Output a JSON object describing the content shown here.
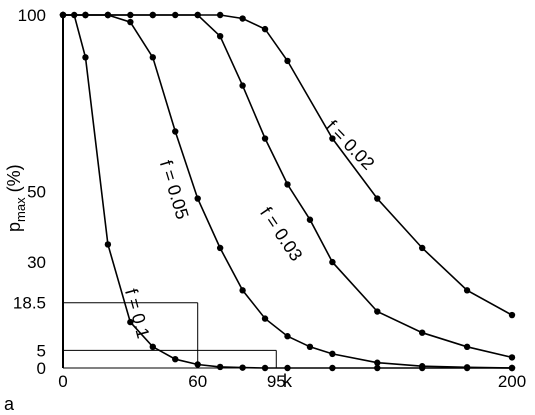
{
  "chart_data": {
    "type": "line",
    "panel_label": "a",
    "xlabel": "k",
    "ylabel_main": "p",
    "ylabel_sub": "max",
    "ylabel_unit": " (%)",
    "xlim": [
      0,
      200
    ],
    "ylim": [
      0,
      100
    ],
    "x_ticks": [
      {
        "value": 0,
        "label": "0"
      },
      {
        "value": 60,
        "label": "60"
      },
      {
        "value": 95,
        "label": "95"
      },
      {
        "value": 200,
        "label": "200"
      }
    ],
    "y_ticks": [
      {
        "value": 0,
        "label": "0"
      },
      {
        "value": 5,
        "label": "5"
      },
      {
        "value": 18.5,
        "label": "18.5"
      },
      {
        "value": 30,
        "label": "30"
      },
      {
        "value": 50,
        "label": "50"
      },
      {
        "value": 100,
        "label": "100"
      }
    ],
    "series": [
      {
        "name": "f = 0.1",
        "points": [
          [
            0,
            100
          ],
          [
            5,
            100
          ],
          [
            10,
            88
          ],
          [
            20,
            35
          ],
          [
            30,
            13
          ],
          [
            40,
            6
          ],
          [
            50,
            2.5
          ],
          [
            60,
            1
          ],
          [
            70,
            0.3
          ],
          [
            80,
            0.1
          ],
          [
            90,
            0
          ],
          [
            100,
            0
          ],
          [
            120,
            0
          ],
          [
            140,
            0
          ],
          [
            160,
            0
          ],
          [
            180,
            0
          ],
          [
            200,
            0
          ]
        ]
      },
      {
        "name": "f = 0.05",
        "points": [
          [
            0,
            100
          ],
          [
            10,
            100
          ],
          [
            20,
            100
          ],
          [
            30,
            98
          ],
          [
            40,
            88
          ],
          [
            50,
            67
          ],
          [
            60,
            48
          ],
          [
            70,
            34
          ],
          [
            80,
            22
          ],
          [
            90,
            14
          ],
          [
            100,
            9
          ],
          [
            110,
            6
          ],
          [
            120,
            4
          ],
          [
            140,
            1.5
          ],
          [
            160,
            0.5
          ],
          [
            180,
            0.2
          ],
          [
            200,
            0
          ]
        ]
      },
      {
        "name": "f = 0.03",
        "points": [
          [
            0,
            100
          ],
          [
            10,
            100
          ],
          [
            20,
            100
          ],
          [
            30,
            100
          ],
          [
            40,
            100
          ],
          [
            50,
            100
          ],
          [
            60,
            100
          ],
          [
            70,
            94
          ],
          [
            80,
            80
          ],
          [
            90,
            65
          ],
          [
            100,
            52
          ],
          [
            110,
            42
          ],
          [
            120,
            30
          ],
          [
            140,
            16
          ],
          [
            160,
            10
          ],
          [
            180,
            6
          ],
          [
            200,
            3
          ]
        ]
      },
      {
        "name": "f = 0.02",
        "points": [
          [
            0,
            100
          ],
          [
            10,
            100
          ],
          [
            20,
            100
          ],
          [
            40,
            100
          ],
          [
            60,
            100
          ],
          [
            70,
            100
          ],
          [
            80,
            99
          ],
          [
            90,
            96
          ],
          [
            100,
            87
          ],
          [
            120,
            65
          ],
          [
            140,
            48
          ],
          [
            160,
            34
          ],
          [
            180,
            22
          ],
          [
            200,
            15
          ]
        ]
      }
    ],
    "reference_lines": [
      {
        "x": 60,
        "y": 18.5
      },
      {
        "x": 95,
        "y": 5
      }
    ]
  }
}
